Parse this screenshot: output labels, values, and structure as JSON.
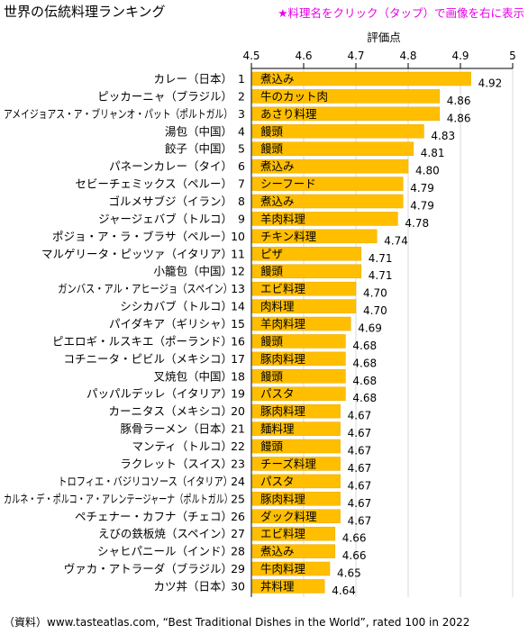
{
  "header": {
    "title": "世界の伝統料理ランキング",
    "instruction": "★料理名をクリック（タップ）で画像を右に表示"
  },
  "footer": {
    "source": "（資料）www.tasteatlas.com, “Best Traditional Dishes in the World”, rated 100 in 2022"
  },
  "colors": {
    "bar": "#ffbf00",
    "bar_edge": "#e8a800",
    "grid": "#d9d9d9",
    "instruction": "#e600e6"
  },
  "chart_data": {
    "type": "bar",
    "orientation": "horizontal",
    "xlabel": "評価点",
    "xlim": [
      4.5,
      5.0
    ],
    "xticks": [
      "4.5",
      "4.6",
      "4.7",
      "4.8",
      "4.9",
      "5"
    ],
    "grid": true,
    "items": [
      {
        "rank": "1",
        "dish": "カレー（日本）",
        "category": "煮込み",
        "value": 4.92,
        "value_label": "4.92"
      },
      {
        "rank": "2",
        "dish": "ピッカーニャ（ブラジル）",
        "category": "牛のカット肉",
        "value": 4.86,
        "value_label": "4.86"
      },
      {
        "rank": "3",
        "dish": "アメイジョアス・ア・ブリャンオ・パット（ポルトガル）",
        "category": "あさり料理",
        "value": 4.86,
        "value_label": "4.86"
      },
      {
        "rank": "4",
        "dish": "湯包（中国）",
        "category": "饅頭",
        "value": 4.83,
        "value_label": "4.83"
      },
      {
        "rank": "5",
        "dish": "餃子（中国）",
        "category": "饅頭",
        "value": 4.81,
        "value_label": "4.81"
      },
      {
        "rank": "6",
        "dish": "パネーンカレー（タイ）",
        "category": "煮込み",
        "value": 4.8,
        "value_label": "4.80"
      },
      {
        "rank": "7",
        "dish": "セビーチェミックス（ペルー）",
        "category": "シーフード",
        "value": 4.79,
        "value_label": "4.79"
      },
      {
        "rank": "8",
        "dish": "ゴルメサブジ（イラン）",
        "category": "煮込み",
        "value": 4.79,
        "value_label": "4.79"
      },
      {
        "rank": "9",
        "dish": "ジャージェバブ（トルコ）",
        "category": "羊肉料理",
        "value": 4.78,
        "value_label": "4.78"
      },
      {
        "rank": "10",
        "dish": "ポジョ・ア・ラ・ブラサ（ペルー）",
        "category": "チキン料理",
        "value": 4.74,
        "value_label": "4.74"
      },
      {
        "rank": "11",
        "dish": "マルゲリータ・ピッツァ（イタリア）",
        "category": "ピザ",
        "value": 4.71,
        "value_label": "4.71"
      },
      {
        "rank": "12",
        "dish": "小籠包（中国）",
        "category": "饅頭",
        "value": 4.71,
        "value_label": "4.71"
      },
      {
        "rank": "13",
        "dish": "ガンバス・アル・アヒージョ（スペイン）",
        "category": "エビ料理",
        "value": 4.7,
        "value_label": "4.70"
      },
      {
        "rank": "14",
        "dish": "シシカバブ（トルコ）",
        "category": "肉料理",
        "value": 4.7,
        "value_label": "4.70"
      },
      {
        "rank": "15",
        "dish": "パイダキア（ギリシャ）",
        "category": "羊肉料理",
        "value": 4.69,
        "value_label": "4.69"
      },
      {
        "rank": "16",
        "dish": "ピエロギ・ルスキエ（ポーランド）",
        "category": "饅頭",
        "value": 4.68,
        "value_label": "4.68"
      },
      {
        "rank": "17",
        "dish": "コチニータ・ピビル（メキシコ）",
        "category": "豚肉料理",
        "value": 4.68,
        "value_label": "4.68"
      },
      {
        "rank": "18",
        "dish": "叉焼包（中国）",
        "category": "饅頭",
        "value": 4.68,
        "value_label": "4.68"
      },
      {
        "rank": "19",
        "dish": "パッパルデッレ（イタリア）",
        "category": "パスタ",
        "value": 4.68,
        "value_label": "4.68"
      },
      {
        "rank": "20",
        "dish": "カーニタス（メキシコ）",
        "category": "豚肉料理",
        "value": 4.67,
        "value_label": "4.67"
      },
      {
        "rank": "21",
        "dish": "豚骨ラーメン（日本）",
        "category": "麺料理",
        "value": 4.67,
        "value_label": "4.67"
      },
      {
        "rank": "22",
        "dish": "マンティ（トルコ）",
        "category": "饅頭",
        "value": 4.67,
        "value_label": "4.67"
      },
      {
        "rank": "23",
        "dish": "ラクレット（スイス）",
        "category": "チーズ料理",
        "value": 4.67,
        "value_label": "4.67"
      },
      {
        "rank": "24",
        "dish": "トロフィエ・バジリコソース（イタリア）",
        "category": "パスタ",
        "value": 4.67,
        "value_label": "4.67"
      },
      {
        "rank": "25",
        "dish": "カルネ・デ・ポルコ・ア・アレンテージャーナ（ポルトガル）",
        "category": "豚肉料理",
        "value": 4.67,
        "value_label": "4.67"
      },
      {
        "rank": "26",
        "dish": "ペチェナー・カフナ（チェコ）",
        "category": "ダック料理",
        "value": 4.67,
        "value_label": "4.67"
      },
      {
        "rank": "27",
        "dish": "えびの鉄板焼（スペイン）",
        "category": "エビ料理",
        "value": 4.66,
        "value_label": "4.66"
      },
      {
        "rank": "28",
        "dish": "シャヒパニール（インド）",
        "category": "煮込み",
        "value": 4.66,
        "value_label": "4.66"
      },
      {
        "rank": "29",
        "dish": "ヴァカ・アトラーダ（ブラジル）",
        "category": "牛肉料理",
        "value": 4.65,
        "value_label": "4.65"
      },
      {
        "rank": "30",
        "dish": "カツ丼（日本）",
        "category": "丼料理",
        "value": 4.64,
        "value_label": "4.64"
      }
    ]
  }
}
